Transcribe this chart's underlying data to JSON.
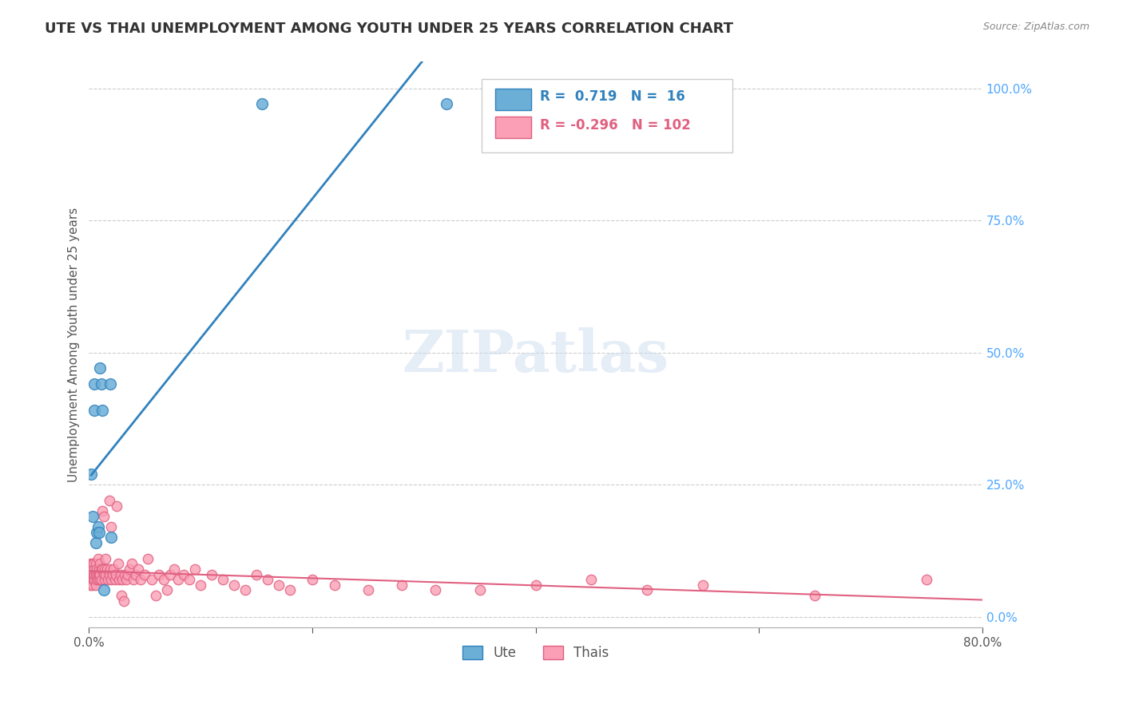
{
  "title": "UTE VS THAI UNEMPLOYMENT AMONG YOUTH UNDER 25 YEARS CORRELATION CHART",
  "source": "Source: ZipAtlas.com",
  "ylabel": "Unemployment Among Youth under 25 years",
  "xlabel": "",
  "xlim": [
    0.0,
    0.8
  ],
  "ylim": [
    -0.02,
    1.05
  ],
  "yticks_right": [
    0.0,
    0.25,
    0.5,
    0.75,
    1.0
  ],
  "ytick_labels_right": [
    "0.0%",
    "25.0%",
    "50.0%",
    "75.0%",
    "100.0%"
  ],
  "xticks": [
    0.0,
    0.2,
    0.4,
    0.6,
    0.8
  ],
  "xtick_labels": [
    "0.0%",
    "",
    "",
    "",
    "80.0%"
  ],
  "legend_blue_r": "0.719",
  "legend_blue_n": "16",
  "legend_pink_r": "-0.296",
  "legend_pink_n": "102",
  "blue_color": "#6baed6",
  "pink_color": "#fa9fb5",
  "blue_line_color": "#3182bd",
  "pink_line_color": "#e06080",
  "watermark": "ZIPatlas",
  "ute_x": [
    0.002,
    0.003,
    0.005,
    0.005,
    0.006,
    0.007,
    0.008,
    0.009,
    0.01,
    0.011,
    0.012,
    0.013,
    0.019,
    0.02,
    0.155,
    0.32
  ],
  "ute_y": [
    0.27,
    0.19,
    0.44,
    0.39,
    0.14,
    0.16,
    0.17,
    0.16,
    0.47,
    0.44,
    0.39,
    0.05,
    0.44,
    0.15,
    0.97,
    0.97
  ],
  "thai_x": [
    0.001,
    0.001,
    0.001,
    0.001,
    0.002,
    0.002,
    0.002,
    0.002,
    0.003,
    0.003,
    0.003,
    0.004,
    0.004,
    0.004,
    0.005,
    0.005,
    0.005,
    0.006,
    0.006,
    0.006,
    0.007,
    0.007,
    0.007,
    0.008,
    0.008,
    0.008,
    0.009,
    0.009,
    0.01,
    0.01,
    0.01,
    0.011,
    0.011,
    0.012,
    0.012,
    0.013,
    0.013,
    0.014,
    0.014,
    0.015,
    0.015,
    0.016,
    0.017,
    0.018,
    0.018,
    0.019,
    0.02,
    0.02,
    0.021,
    0.022,
    0.023,
    0.024,
    0.025,
    0.026,
    0.027,
    0.028,
    0.029,
    0.03,
    0.031,
    0.032,
    0.033,
    0.035,
    0.036,
    0.038,
    0.04,
    0.042,
    0.044,
    0.046,
    0.05,
    0.053,
    0.056,
    0.06,
    0.063,
    0.067,
    0.07,
    0.073,
    0.076,
    0.08,
    0.085,
    0.09,
    0.095,
    0.1,
    0.11,
    0.12,
    0.13,
    0.14,
    0.15,
    0.16,
    0.17,
    0.18,
    0.2,
    0.22,
    0.25,
    0.28,
    0.31,
    0.35,
    0.4,
    0.45,
    0.5,
    0.55,
    0.65,
    0.75
  ],
  "thai_y": [
    0.07,
    0.08,
    0.06,
    0.1,
    0.07,
    0.08,
    0.07,
    0.09,
    0.1,
    0.07,
    0.06,
    0.07,
    0.08,
    0.1,
    0.07,
    0.09,
    0.08,
    0.06,
    0.08,
    0.1,
    0.07,
    0.09,
    0.08,
    0.11,
    0.08,
    0.07,
    0.08,
    0.09,
    0.07,
    0.1,
    0.08,
    0.09,
    0.07,
    0.2,
    0.09,
    0.08,
    0.19,
    0.09,
    0.07,
    0.08,
    0.11,
    0.09,
    0.07,
    0.08,
    0.22,
    0.09,
    0.07,
    0.17,
    0.08,
    0.09,
    0.07,
    0.08,
    0.21,
    0.1,
    0.07,
    0.08,
    0.04,
    0.07,
    0.03,
    0.08,
    0.07,
    0.08,
    0.09,
    0.1,
    0.07,
    0.08,
    0.09,
    0.07,
    0.08,
    0.11,
    0.07,
    0.04,
    0.08,
    0.07,
    0.05,
    0.08,
    0.09,
    0.07,
    0.08,
    0.07,
    0.09,
    0.06,
    0.08,
    0.07,
    0.06,
    0.05,
    0.08,
    0.07,
    0.06,
    0.05,
    0.07,
    0.06,
    0.05,
    0.06,
    0.05,
    0.05,
    0.06,
    0.07,
    0.05,
    0.06,
    0.04,
    0.07
  ]
}
